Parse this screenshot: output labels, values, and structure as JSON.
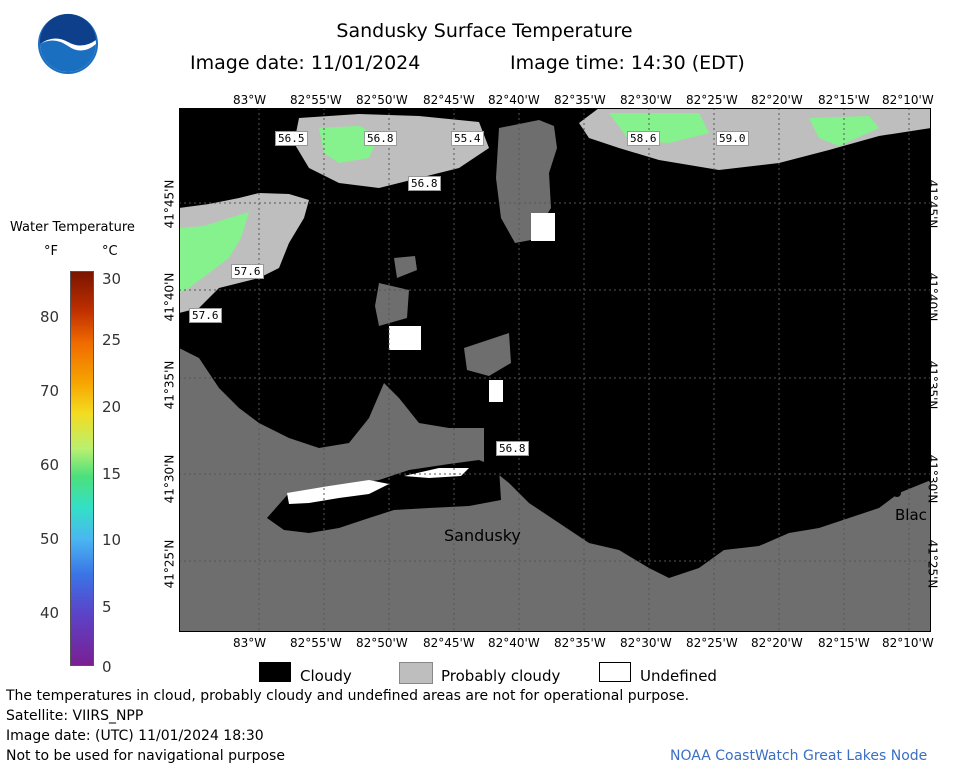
{
  "header": {
    "title": "Sandusky Surface Temperature",
    "image_date_label": "Image date: 11/01/2024",
    "image_time_label": "Image time: 14:30 (EDT)"
  },
  "legend": {
    "title": "Water Temperature",
    "unit_f": "°F",
    "unit_c": "°C",
    "f_ticks": [
      "80",
      "70",
      "60",
      "50",
      "40"
    ],
    "c_ticks": [
      "30",
      "25",
      "20",
      "15",
      "10",
      "5",
      "0"
    ],
    "key_cloudy": "Cloudy",
    "key_probably_cloudy": "Probably cloudy",
    "key_undefined": "Undefined"
  },
  "map": {
    "lon_ticks": [
      "83°W",
      "82°55'W",
      "82°50'W",
      "82°45'W",
      "82°40'W",
      "82°35'W",
      "82°30'W",
      "82°25'W",
      "82°20'W",
      "82°15'W",
      "82°10'W"
    ],
    "lat_ticks": [
      "41°45'N",
      "41°40'N",
      "41°35'N",
      "41°30'N",
      "41°25'N"
    ],
    "temp_labels": [
      "56.5",
      "56.8",
      "55.4",
      "56.8",
      "58.6",
      "59.0",
      "57.6",
      "57.6",
      "56.8"
    ],
    "place_sandusky": "Sandusky",
    "place_bla": "Blac"
  },
  "footer": {
    "disclaimer": "The temperatures in cloud, probably cloudy and undefined areas are not for operational purpose.",
    "satellite": "Satellite: VIIRS_NPP",
    "utc_date": "Image date: (UTC) 11/01/2024  18:30",
    "nav_note": "Not to be used for navigational purpose",
    "credit": "NOAA CoastWatch Great Lakes Node"
  },
  "colors": {
    "cloud": "#000000",
    "probably_cloudy": "#bebebe",
    "land": "#6e6e6e",
    "warm_water": "#86f28e",
    "credit_blue": "#3a6fc4"
  }
}
